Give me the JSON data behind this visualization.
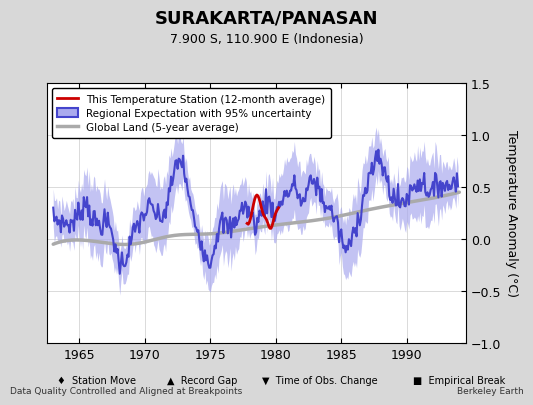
{
  "title": "SURAKARTA/PANASAN",
  "subtitle": "7.900 S, 110.900 E (Indonesia)",
  "ylabel": "Temperature Anomaly (°C)",
  "xlabel_bottom": "Data Quality Controlled and Aligned at Breakpoints",
  "xlabel_right": "Berkeley Earth",
  "ylim": [
    -1.0,
    1.5
  ],
  "xlim": [
    1962.5,
    1994.5
  ],
  "yticks": [
    -1.0,
    -0.5,
    0.0,
    0.5,
    1.0,
    1.5
  ],
  "xticks": [
    1965,
    1970,
    1975,
    1980,
    1985,
    1990
  ],
  "bg_color": "#e8e8e8",
  "plot_bg_color": "#ffffff",
  "regional_color": "#4444cc",
  "regional_fill_color": "#aaaaee",
  "station_color": "#cc0000",
  "global_color": "#aaaaaa",
  "global_lw": 2.5,
  "regional_lw": 1.5,
  "station_lw": 2.0
}
